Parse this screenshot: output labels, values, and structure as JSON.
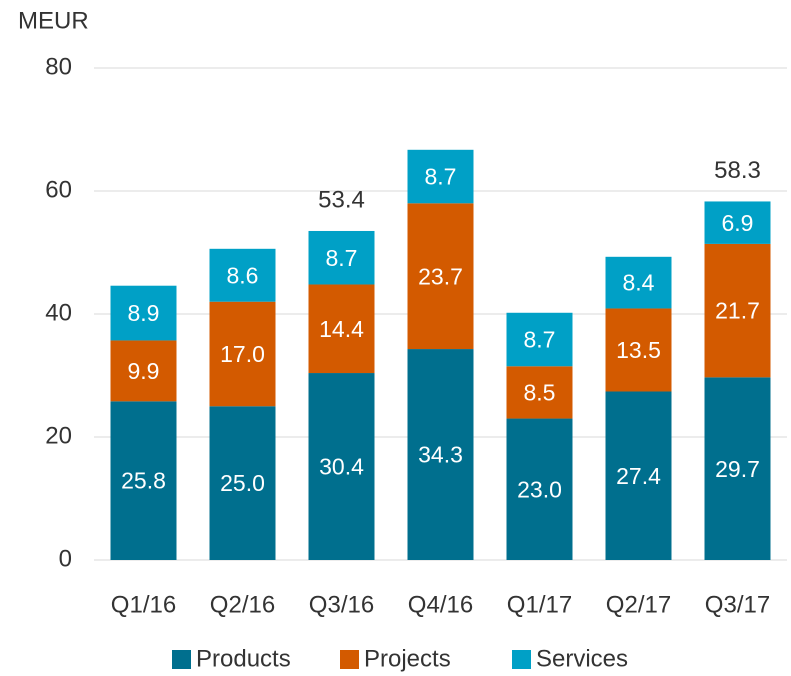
{
  "chart_data": {
    "type": "stacked_bar",
    "y_axis_label": "MEUR",
    "categories": [
      "Q1/16",
      "Q2/16",
      "Q3/16",
      "Q4/16",
      "Q1/17",
      "Q2/17",
      "Q3/17"
    ],
    "series": [
      {
        "name": "Products",
        "color": "#006f8e",
        "values": [
          25.8,
          25.0,
          30.4,
          34.3,
          23.0,
          27.4,
          29.7
        ],
        "value_labels": [
          "25.8",
          "25.0",
          "30.4",
          "34.3",
          "23.0",
          "27.4",
          "29.7"
        ]
      },
      {
        "name": "Projects",
        "color": "#d35a00",
        "values": [
          9.9,
          17.0,
          14.4,
          23.7,
          8.5,
          13.5,
          21.7
        ],
        "value_labels": [
          "9.9",
          "17.0",
          "14.4",
          "23.7",
          "8.5",
          "13.5",
          "21.7"
        ]
      },
      {
        "name": "Services",
        "color": "#00a0c6",
        "values": [
          8.9,
          8.6,
          8.7,
          8.7,
          8.7,
          8.4,
          6.9
        ],
        "value_labels": [
          "8.9",
          "8.6",
          "8.7",
          "8.7",
          "8.7",
          "8.4",
          "6.9"
        ]
      }
    ],
    "annotations": [
      {
        "x": "Q3/16",
        "text": "53.4"
      },
      {
        "x": "Q3/17",
        "text": "58.3"
      }
    ],
    "ylim": [
      0,
      80
    ],
    "yticks": [
      0,
      20,
      40,
      60,
      80
    ],
    "grid": true,
    "legend": "bottom"
  }
}
